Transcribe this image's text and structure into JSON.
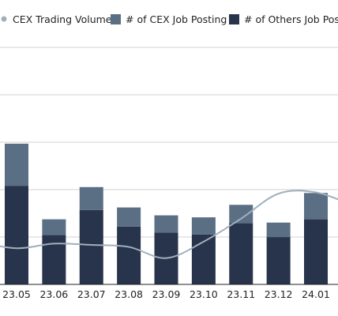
{
  "chart_data": {
    "type": "bar",
    "stacked": true,
    "categories": [
      "23.05",
      "23.06",
      "23.07",
      "23.08",
      "23.09",
      "23.10",
      "23.11",
      "23.12",
      "24.01"
    ],
    "series": [
      {
        "name": "# of Others Job Posting",
        "kind": "bar",
        "color": "#28344b",
        "values": [
          150,
          75,
          113,
          88,
          79,
          76,
          93,
          72,
          99
        ]
      },
      {
        "name": "# of CEX Job Posting",
        "kind": "bar",
        "color": "#5b6f84",
        "values": [
          64,
          24,
          35,
          29,
          26,
          26,
          28,
          22,
          40
        ]
      },
      {
        "name": "CEX Trading Volume",
        "kind": "line",
        "color": "#9fb0bd",
        "values": [
          55,
          62,
          60,
          57,
          40,
          65,
          100,
          138,
          140
        ]
      }
    ],
    "ylim": [
      0,
      370
    ],
    "grid": true,
    "legend_position": "top"
  }
}
